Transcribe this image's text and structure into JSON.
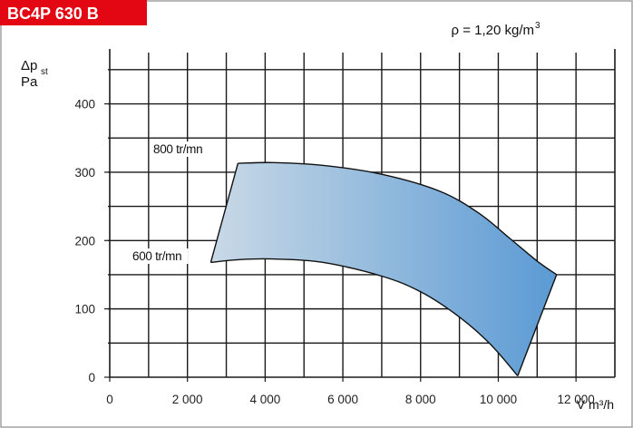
{
  "header": {
    "model": "BC4P 630 B",
    "density_label": "ρ = 1,20 kg/m",
    "density_sup": "3"
  },
  "colors": {
    "badge": "#e30613",
    "frame": "#8a8a8a",
    "grid": "#1a1a1a",
    "area_light": "#c9d9e6",
    "area_dark": "#5b9ad4",
    "outline": "#111111"
  },
  "chart_data": {
    "type": "area",
    "xlabel": "V̇ m³/h",
    "ylabel": [
      "Δp",
      "st",
      "Pa"
    ],
    "xlim": [
      0,
      13000
    ],
    "ylim": [
      0,
      475
    ],
    "x_ticks": [
      0,
      2000,
      4000,
      6000,
      8000,
      10000,
      12000
    ],
    "x_tick_labels": [
      "0",
      "2 000",
      "4 000",
      "6 000",
      "8 000",
      "10 000",
      "12 000"
    ],
    "y_ticks": [
      0,
      100,
      200,
      300,
      400
    ],
    "y_tick_labels": [
      "0",
      "100",
      "200",
      "300",
      "400"
    ],
    "grid": true,
    "series": [
      {
        "name": "800 tr/mn",
        "x": [
          3300,
          4200,
          5500,
          7000,
          8500,
          9500,
          10300,
          11000,
          11500
        ],
        "y": [
          313,
          314,
          310,
          297,
          272,
          240,
          203,
          170,
          150
        ]
      },
      {
        "name": "600 tr/mn",
        "x": [
          2600,
          3300,
          4200,
          5500,
          7000,
          8000,
          9000,
          9800,
          10500
        ],
        "y": [
          168,
          172,
          173,
          168,
          148,
          125,
          88,
          48,
          2
        ]
      }
    ]
  }
}
